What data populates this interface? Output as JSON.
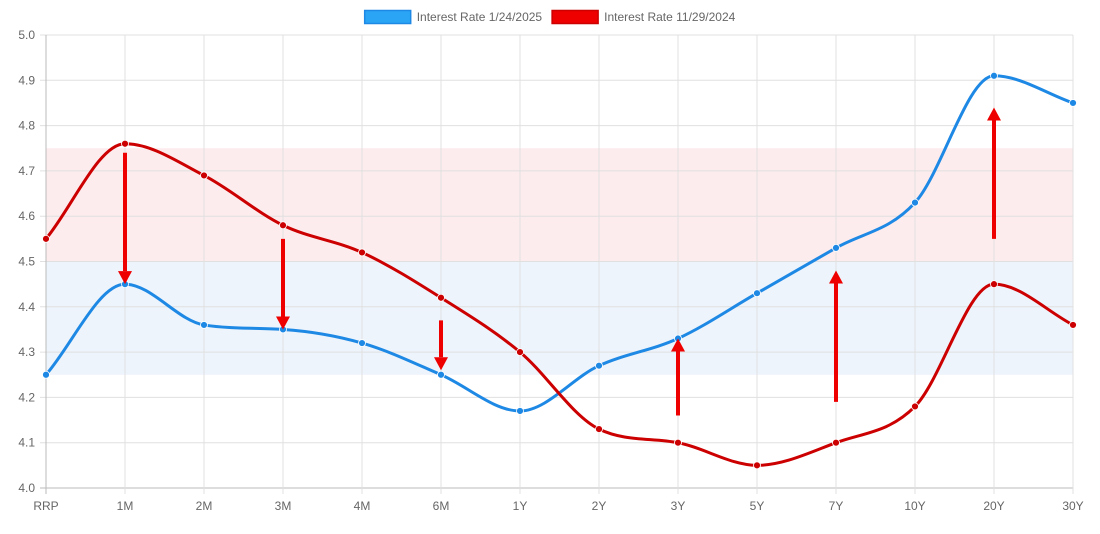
{
  "chart_data": {
    "type": "line",
    "categories": [
      "RRP",
      "1M",
      "2M",
      "3M",
      "4M",
      "6M",
      "1Y",
      "2Y",
      "3Y",
      "5Y",
      "7Y",
      "10Y",
      "20Y",
      "30Y"
    ],
    "series": [
      {
        "name": "Interest Rate 1/24/2025",
        "color": "#1e88e5",
        "legend_fill": "#2aa5f5",
        "values": [
          4.25,
          4.45,
          4.36,
          4.35,
          4.32,
          4.25,
          4.17,
          4.27,
          4.33,
          4.43,
          4.53,
          4.63,
          4.91,
          4.85
        ]
      },
      {
        "name": "Interest Rate 11/29/2024",
        "color": "#cc0000",
        "legend_fill": "#ee0000",
        "values": [
          4.55,
          4.76,
          4.69,
          4.58,
          4.52,
          4.42,
          4.3,
          4.13,
          4.1,
          4.05,
          4.1,
          4.18,
          4.45,
          4.36
        ]
      }
    ],
    "ylim": [
      4.0,
      5.0
    ],
    "y_ticks": [
      "4.0",
      "4.1",
      "4.2",
      "4.3",
      "4.4",
      "4.5",
      "4.6",
      "4.7",
      "4.8",
      "4.9",
      "5.0"
    ],
    "grid": true,
    "legend_position": "top-center",
    "bands": [
      {
        "from": 4.5,
        "to": 4.75,
        "color": "#fdecee"
      },
      {
        "from": 4.25,
        "to": 4.5,
        "color": "#eef4fb"
      }
    ],
    "arrows": [
      {
        "category": "1M",
        "from": 4.74,
        "to": 4.45,
        "color": "#ee0000"
      },
      {
        "category": "3M",
        "from": 4.55,
        "to": 4.35,
        "color": "#ee0000"
      },
      {
        "category": "6M",
        "from": 4.37,
        "to": 4.26,
        "color": "#ee0000"
      },
      {
        "category": "3Y",
        "from": 4.16,
        "to": 4.33,
        "color": "#ee0000"
      },
      {
        "category": "7Y",
        "from": 4.19,
        "to": 4.48,
        "color": "#ee0000"
      },
      {
        "category": "20Y",
        "from": 4.55,
        "to": 4.84,
        "color": "#ee0000"
      }
    ]
  }
}
